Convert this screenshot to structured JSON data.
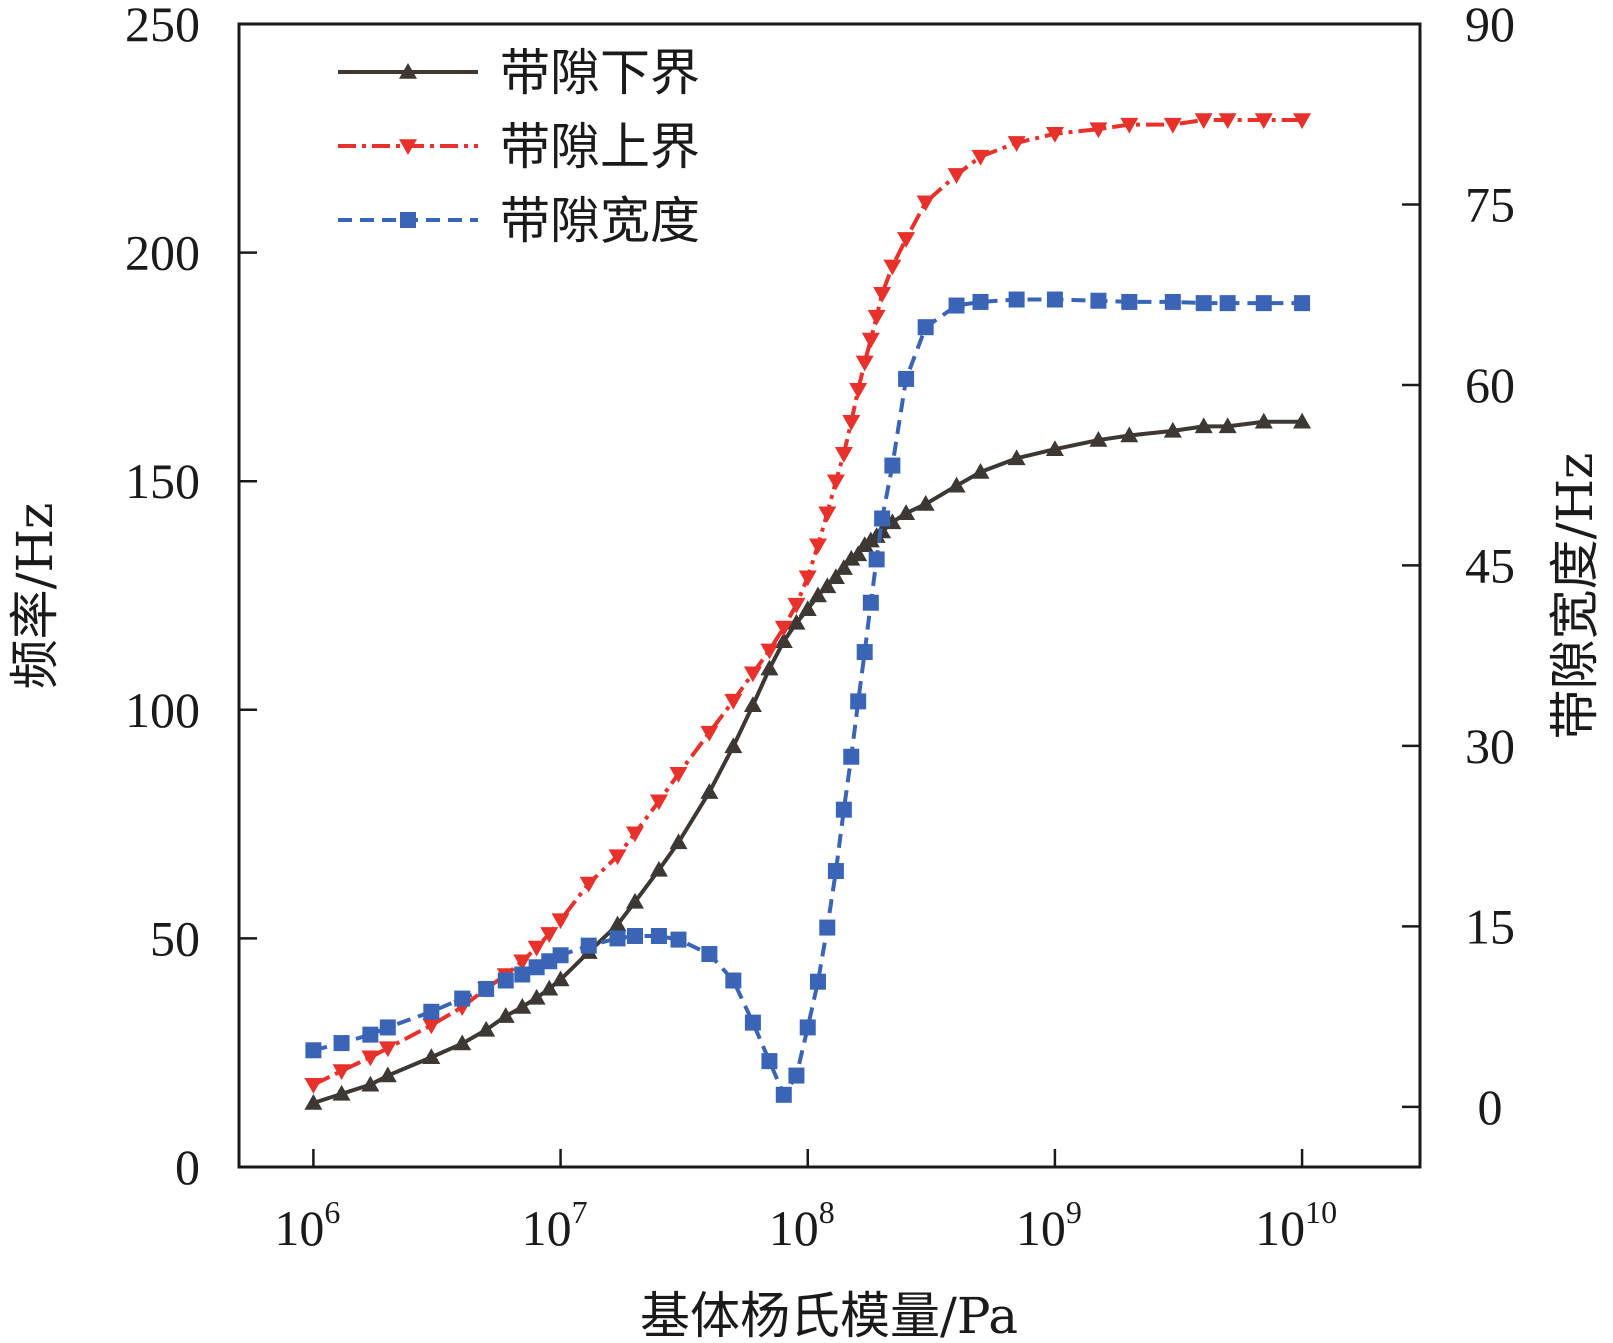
{
  "chart_data": {
    "type": "line",
    "x_scale": "log",
    "xlabel": "基体杨氏模量/Pa",
    "ylabel_left": "频率/Hz",
    "ylabel_right": "带隙宽度/Hz",
    "xlim": [
      500000,
      30000000000
    ],
    "x_ticks": [
      {
        "value": 1000000,
        "base": "10",
        "exp": "6"
      },
      {
        "value": 10000000,
        "base": "10",
        "exp": "7"
      },
      {
        "value": 100000000,
        "base": "10",
        "exp": "8"
      },
      {
        "value": 1000000000,
        "base": "10",
        "exp": "9"
      },
      {
        "value": 10000000000,
        "base": "10",
        "exp": "10"
      }
    ],
    "ylim_left": [
      0,
      250
    ],
    "y_ticks_left": [
      "0",
      "50",
      "100",
      "150",
      "200",
      "250"
    ],
    "ylim_right": [
      -5,
      90
    ],
    "y_ticks_right": [
      "0",
      "15",
      "30",
      "45",
      "60",
      "75",
      "90"
    ],
    "legend_position": "top-left",
    "grid": false,
    "series": [
      {
        "name": "带隙下界",
        "axis": "left",
        "color": "#3d3833",
        "line": "solid",
        "marker": "triangle-up",
        "x": [
          1000000,
          1300000,
          1700000,
          2000000,
          3000000,
          4000000,
          5000000,
          6000000,
          7000000,
          8000000,
          9000000,
          10000000,
          13000000,
          17000000,
          20000000,
          25000000,
          30000000,
          40000000,
          50000000,
          60000000,
          70000000,
          80000000,
          90000000,
          100000000,
          110000000,
          120000000,
          130000000,
          140000000,
          150000000,
          160000000,
          170000000,
          180000000,
          190000000,
          200000000,
          220000000,
          250000000,
          300000000,
          400000000,
          500000000,
          700000000,
          1000000000,
          1500000000,
          2000000000,
          3000000000,
          4000000000,
          5000000000,
          7000000000,
          10000000000
        ],
        "y": [
          14,
          16,
          18,
          20,
          24,
          27,
          30,
          33,
          35,
          37,
          39,
          41,
          47,
          53,
          58,
          65,
          71,
          82,
          92,
          101,
          109,
          115,
          119,
          122,
          125,
          127,
          129,
          131,
          133,
          134,
          136,
          137,
          138,
          139,
          141,
          143,
          145,
          149,
          152,
          155,
          157,
          159,
          160,
          161,
          162,
          162,
          163,
          163
        ]
      },
      {
        "name": "带隙上界",
        "axis": "left",
        "color": "#e8312a",
        "line": "dash-dot",
        "marker": "triangle-down",
        "x": [
          1000000,
          1300000,
          1700000,
          2000000,
          3000000,
          4000000,
          5000000,
          6000000,
          7000000,
          8000000,
          9000000,
          10000000,
          13000000,
          17000000,
          20000000,
          25000000,
          30000000,
          40000000,
          50000000,
          60000000,
          70000000,
          80000000,
          90000000,
          100000000,
          110000000,
          120000000,
          130000000,
          140000000,
          150000000,
          160000000,
          170000000,
          180000000,
          190000000,
          200000000,
          220000000,
          250000000,
          300000000,
          400000000,
          500000000,
          700000000,
          1000000000,
          1500000000,
          2000000000,
          3000000000,
          4000000000,
          5000000000,
          7000000000,
          10000000000
        ],
        "y": [
          18,
          21,
          24,
          26,
          31,
          35,
          39,
          42,
          45,
          48,
          51,
          54,
          62,
          68,
          73,
          80,
          86,
          95,
          102,
          108,
          113,
          118,
          123,
          129,
          136,
          143,
          150,
          156,
          163,
          170,
          176,
          181,
          186,
          191,
          197,
          203,
          211,
          217,
          221,
          224,
          226,
          227,
          228,
          228,
          229,
          229,
          229,
          229
        ]
      },
      {
        "name": "带隙宽度",
        "axis": "right",
        "color": "#3a64b6",
        "line": "dashed",
        "marker": "square",
        "x": [
          1000000,
          1300000,
          1700000,
          2000000,
          3000000,
          4000000,
          5000000,
          6000000,
          7000000,
          8000000,
          9000000,
          10000000,
          13000000,
          17000000,
          20000000,
          25000000,
          30000000,
          40000000,
          50000000,
          60000000,
          70000000,
          80000000,
          90000000,
          100000000,
          110000000,
          120000000,
          130000000,
          140000000,
          150000000,
          160000000,
          170000000,
          180000000,
          190000000,
          200000000,
          220000000,
          250000000,
          300000000,
          400000000,
          500000000,
          700000000,
          1000000000,
          1500000000,
          2000000000,
          3000000000,
          4000000000,
          5000000000,
          7000000000,
          10000000000
        ],
        "y": [
          4.7,
          5.3,
          6.0,
          6.6,
          7.9,
          9.0,
          9.8,
          10.5,
          11.0,
          11.6,
          12.1,
          12.6,
          13.4,
          14.0,
          14.2,
          14.2,
          13.9,
          12.7,
          10.5,
          7.0,
          3.8,
          1.0,
          2.6,
          6.6,
          10.4,
          14.9,
          19.6,
          24.7,
          29.1,
          33.7,
          37.8,
          41.9,
          45.5,
          48.9,
          53.3,
          60.5,
          64.8,
          66.6,
          66.9,
          67.1,
          67.1,
          67.0,
          66.9,
          66.9,
          66.8,
          66.8,
          66.8,
          66.8
        ]
      }
    ]
  }
}
